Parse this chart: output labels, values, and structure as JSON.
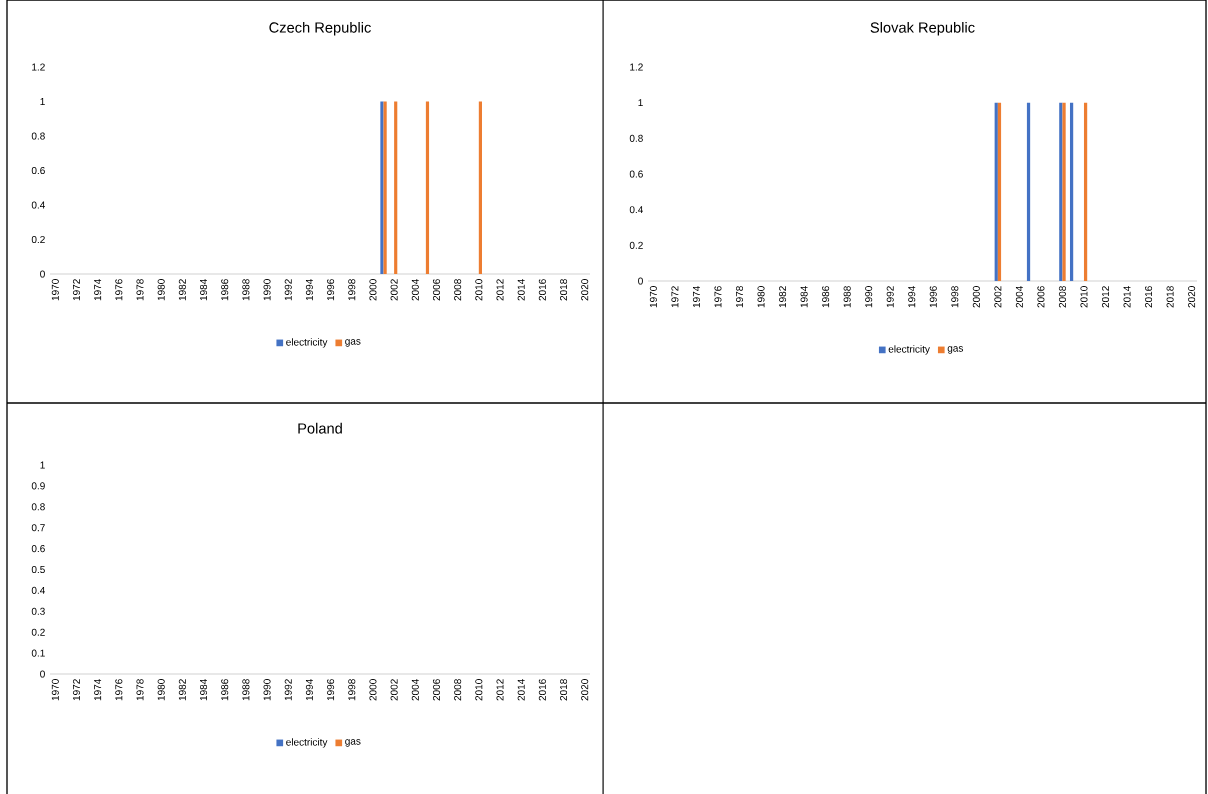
{
  "chart_data": [
    {
      "type": "bar",
      "title": "Czech Republic",
      "categories": [
        "1970",
        null,
        "1972",
        null,
        "1974",
        null,
        "1976",
        null,
        "1978",
        null,
        "1980",
        null,
        "1982",
        null,
        "1984",
        null,
        "1986",
        null,
        "1988",
        null,
        "1990",
        null,
        "1992",
        null,
        "1994",
        null,
        "1996",
        null,
        "1998",
        null,
        "2000",
        null,
        "2002",
        null,
        "2004",
        null,
        "2006",
        null,
        "2008",
        null,
        "2010",
        null,
        "2012",
        null,
        "2014",
        null,
        "2016",
        null,
        "2018",
        null,
        "2020"
      ],
      "series": [
        {
          "name": "electricity",
          "color": "#4472c4",
          "values": [
            0,
            0,
            0,
            0,
            0,
            0,
            0,
            0,
            0,
            0,
            0,
            0,
            0,
            0,
            0,
            0,
            0,
            0,
            0,
            0,
            0,
            0,
            0,
            0,
            0,
            0,
            0,
            0,
            0,
            0,
            0,
            1,
            0,
            0,
            0,
            0,
            0,
            0,
            0,
            0,
            0,
            0,
            0,
            0,
            0,
            0,
            0,
            0,
            0,
            0,
            0
          ]
        },
        {
          "name": "gas",
          "color": "#ed7d31",
          "values": [
            0,
            0,
            0,
            0,
            0,
            0,
            0,
            0,
            0,
            0,
            0,
            0,
            0,
            0,
            0,
            0,
            0,
            0,
            0,
            0,
            0,
            0,
            0,
            0,
            0,
            0,
            0,
            0,
            0,
            0,
            0,
            1,
            1,
            0,
            0,
            1,
            0,
            0,
            0,
            0,
            1,
            0,
            0,
            0,
            0,
            0,
            0,
            0,
            0,
            0,
            0
          ]
        }
      ],
      "ylim": [
        0,
        1.2
      ],
      "yticks": [
        0,
        0.2,
        0.4,
        0.6,
        0.8,
        1,
        1.2
      ],
      "legend": "bottom"
    },
    {
      "type": "bar",
      "title": "Slovak Republic",
      "categories": [
        "1970",
        null,
        "1972",
        null,
        "1974",
        null,
        "1976",
        null,
        "1978",
        null,
        "1980",
        null,
        "1982",
        null,
        "1984",
        null,
        "1986",
        null,
        "1988",
        null,
        "1990",
        null,
        "1992",
        null,
        "1994",
        null,
        "1996",
        null,
        "1998",
        null,
        "2000",
        null,
        "2002",
        null,
        "2004",
        null,
        "2006",
        null,
        "2008",
        null,
        "2010",
        null,
        "2012",
        null,
        "2014",
        null,
        "2016",
        null,
        "2018",
        null,
        "2020"
      ],
      "series": [
        {
          "name": "electricity",
          "color": "#4472c4",
          "values": [
            0,
            0,
            0,
            0,
            0,
            0,
            0,
            0,
            0,
            0,
            0,
            0,
            0,
            0,
            0,
            0,
            0,
            0,
            0,
            0,
            0,
            0,
            0,
            0,
            0,
            0,
            0,
            0,
            0,
            0,
            0,
            0,
            1,
            0,
            0,
            1,
            0,
            0,
            1,
            1,
            0,
            0,
            0,
            0,
            0,
            0,
            0,
            0,
            0,
            0,
            0
          ]
        },
        {
          "name": "gas",
          "color": "#ed7d31",
          "values": [
            0,
            0,
            0,
            0,
            0,
            0,
            0,
            0,
            0,
            0,
            0,
            0,
            0,
            0,
            0,
            0,
            0,
            0,
            0,
            0,
            0,
            0,
            0,
            0,
            0,
            0,
            0,
            0,
            0,
            0,
            0,
            0,
            1,
            0,
            0,
            0,
            0,
            0,
            1,
            0,
            1,
            0,
            0,
            0,
            0,
            0,
            0,
            0,
            0,
            0,
            0
          ]
        }
      ],
      "ylim": [
        0,
        1.2
      ],
      "yticks": [
        0,
        0.2,
        0.4,
        0.6,
        0.8,
        1,
        1.2
      ],
      "legend": "bottom"
    },
    {
      "type": "bar",
      "title": "Poland",
      "categories": [
        "1970",
        null,
        "1972",
        null,
        "1974",
        null,
        "1976",
        null,
        "1978",
        null,
        "1980",
        null,
        "1982",
        null,
        "1984",
        null,
        "1986",
        null,
        "1988",
        null,
        "1990",
        null,
        "1992",
        null,
        "1994",
        null,
        "1996",
        null,
        "1998",
        null,
        "2000",
        null,
        "2002",
        null,
        "2004",
        null,
        "2006",
        null,
        "2008",
        null,
        "2010",
        null,
        "2012",
        null,
        "2014",
        null,
        "2016",
        null,
        "2018",
        null,
        "2020"
      ],
      "series": [
        {
          "name": "electricity",
          "color": "#4472c4",
          "values": [
            0,
            0,
            0,
            0,
            0,
            0,
            0,
            0,
            0,
            0,
            0,
            0,
            0,
            0,
            0,
            0,
            0,
            0,
            0,
            0,
            0,
            0,
            0,
            0,
            0,
            0,
            0,
            0,
            0,
            0,
            0,
            0,
            0,
            0,
            0,
            0,
            0,
            0,
            0,
            0,
            0,
            0,
            0,
            0,
            0,
            0,
            0,
            0,
            0,
            0,
            0
          ]
        },
        {
          "name": "gas",
          "color": "#ed7d31",
          "values": [
            0,
            0,
            0,
            0,
            0,
            0,
            0,
            0,
            0,
            0,
            0,
            0,
            0,
            0,
            0,
            0,
            0,
            0,
            0,
            0,
            0,
            0,
            0,
            0,
            0,
            0,
            0,
            0,
            0,
            0,
            0,
            0,
            0,
            0,
            0,
            0,
            0,
            0,
            0,
            0,
            0,
            0,
            0,
            0,
            0,
            0,
            0,
            0,
            0,
            0,
            0
          ]
        }
      ],
      "ylim": [
        0,
        1
      ],
      "yticks": [
        0,
        0.1,
        0.2,
        0.3,
        0.4,
        0.5,
        0.6,
        0.7,
        0.8,
        0.9,
        1
      ],
      "legend": "bottom"
    }
  ]
}
